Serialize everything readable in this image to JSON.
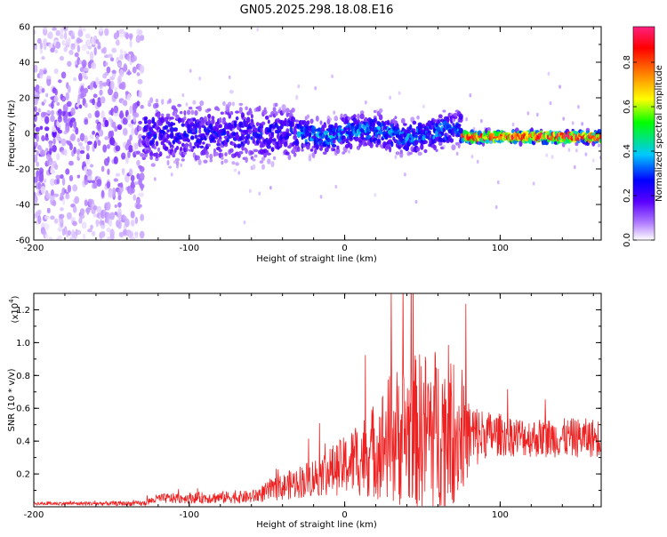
{
  "title": "GN05.2025.298.18.08.E16",
  "chart_data": [
    {
      "type": "heatmap",
      "name": "spectrogram",
      "xlabel": "Height of straight line (km)",
      "ylabel": "Frequency (Hz)",
      "xlim": [
        -200,
        165
      ],
      "ylim": [
        -60,
        60
      ],
      "x_ticks": [
        -200,
        -100,
        0,
        100
      ],
      "y_ticks": [
        -60,
        -40,
        -20,
        0,
        20,
        40,
        60
      ],
      "colorbar": {
        "label": "Normalized spectral amplitude",
        "range": [
          0.0,
          0.96
        ],
        "ticks": [
          0.0,
          0.2,
          0.4,
          0.6,
          0.8
        ],
        "tick_labels": [
          "0.0",
          "0.2",
          "0.4",
          "0.6",
          "0.8"
        ],
        "colormap": [
          "#ffffff",
          "#b07cff",
          "#5a00ff",
          "#0000ff",
          "#00c8ff",
          "#00ff00",
          "#ffff00",
          "#ff6000",
          "#ff0000",
          "#ff2080"
        ]
      },
      "description_points": [
        {
          "x_range": [
            -200,
            -130
          ],
          "pattern": "broadband noise",
          "amplitude": 0.15
        },
        {
          "x_range": [
            -130,
            -30
          ],
          "pattern": "band around 0 Hz",
          "freq_center": 0,
          "freq_halfwidth": 10,
          "amplitude": 0.3
        },
        {
          "x_range": [
            -30,
            75
          ],
          "pattern": "narrow band",
          "freq_center": 0,
          "freq_halfwidth": 6,
          "amplitude": 0.4
        },
        {
          "x_range": [
            75,
            165
          ],
          "pattern": "strong narrow line",
          "freq_center": -2,
          "freq_halfwidth": 2,
          "amplitude": 0.9
        }
      ]
    },
    {
      "type": "line",
      "name": "snr",
      "xlabel": "Height of straight line (km)",
      "ylabel": "SNR (10 * v/v)",
      "yscale_label": "(x10",
      "yscale_exponent": "4",
      "xlim": [
        -200,
        165
      ],
      "ylim": [
        0,
        1.3
      ],
      "x_ticks": [
        -200,
        -100,
        0,
        100
      ],
      "y_ticks": [
        0.2,
        0.4,
        0.6,
        0.8,
        1.0,
        1.2
      ],
      "y_tick_labels": [
        "0.2",
        "0.4",
        "0.6",
        "0.8",
        "1.0",
        "1.2"
      ],
      "color": "#ee2222",
      "envelope": {
        "x": [
          -200,
          -130,
          -120,
          -60,
          -40,
          -20,
          0,
          20,
          30,
          40,
          50,
          60,
          70,
          80,
          90,
          100,
          120,
          140,
          165
        ],
        "y_mean": [
          0.02,
          0.02,
          0.05,
          0.06,
          0.12,
          0.18,
          0.25,
          0.35,
          0.42,
          0.45,
          0.46,
          0.48,
          0.45,
          0.42,
          0.44,
          0.44,
          0.42,
          0.42,
          0.42
        ],
        "y_spread": [
          0.01,
          0.015,
          0.03,
          0.04,
          0.08,
          0.12,
          0.18,
          0.3,
          0.42,
          0.45,
          0.5,
          0.5,
          0.45,
          0.25,
          0.15,
          0.13,
          0.12,
          0.12,
          0.12
        ]
      }
    }
  ]
}
